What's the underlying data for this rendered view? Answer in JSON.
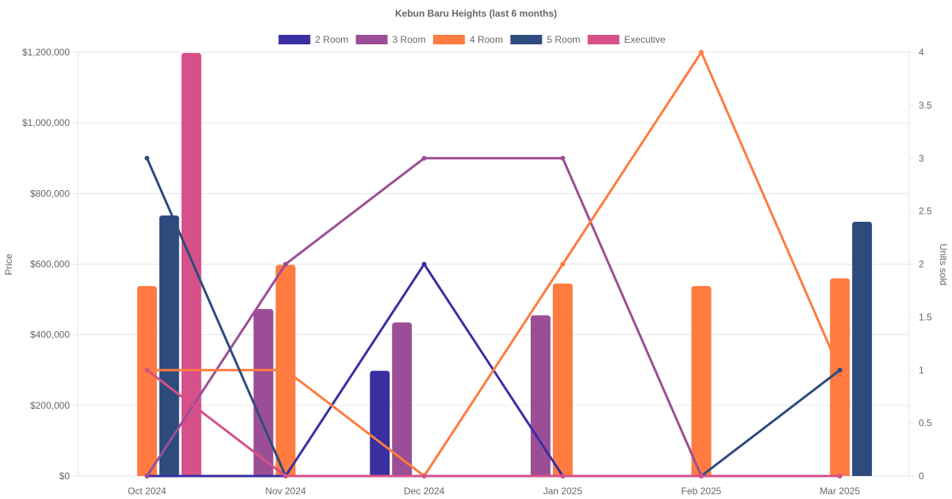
{
  "chart_data": {
    "type": "bar",
    "title": "Kebun Baru Heights (last 6 months)",
    "categories": [
      "Oct 2024",
      "Nov 2024",
      "Dec 2024",
      "Jan 2025",
      "Feb 2025",
      "Mar 2025"
    ],
    "ylabel": "Price",
    "y2label": "Units sold",
    "ylim": [
      0,
      1200000
    ],
    "y2lim": [
      0,
      4
    ],
    "y_ticks": [
      "$0",
      "$200,000",
      "$400,000",
      "$600,000",
      "$800,000",
      "$1,000,000",
      "$1,200,000"
    ],
    "y2_ticks": [
      "0",
      "0.5",
      "1",
      "1.5",
      "2",
      "2.5",
      "3",
      "3.5",
      "4"
    ],
    "legend_position": "top",
    "grid": true,
    "series": [
      {
        "name": "2 Room",
        "color": "#3a2fa0",
        "price": [
          0,
          0,
          298000,
          0,
          0,
          0
        ],
        "units": [
          0,
          0,
          2,
          0,
          0,
          0
        ]
      },
      {
        "name": "3 Room",
        "color": "#9b4e96",
        "price": [
          0,
          473000,
          435000,
          455000,
          0,
          0
        ],
        "units": [
          0,
          2,
          3,
          3,
          0,
          0
        ]
      },
      {
        "name": "4 Room",
        "color": "#ff7b40",
        "price": [
          538000,
          598000,
          0,
          545000,
          538000,
          560000
        ],
        "units": [
          1,
          1,
          0,
          2,
          4,
          1
        ]
      },
      {
        "name": "5 Room",
        "color": "#2e4b7e",
        "price": [
          738000,
          0,
          0,
          0,
          0,
          720000
        ],
        "units": [
          3,
          0,
          0,
          0,
          0,
          1
        ]
      },
      {
        "name": "Executive",
        "color": "#d6508a",
        "price": [
          1198000,
          0,
          0,
          0,
          0,
          0
        ],
        "units": [
          1,
          0,
          0,
          0,
          0,
          0
        ]
      }
    ]
  }
}
